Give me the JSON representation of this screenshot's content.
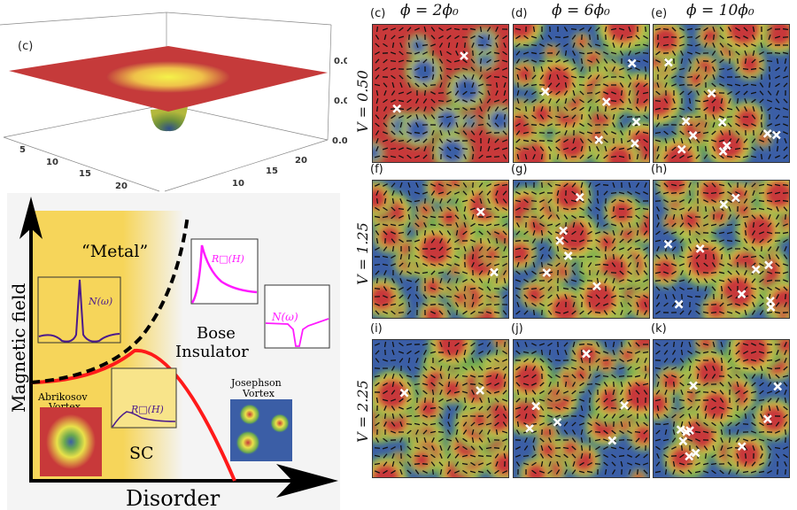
{
  "plot3d": {
    "label": "(c)",
    "z_ticks": [
      "0.0",
      "0.0",
      "0.00"
    ],
    "x_ticks": [
      "5",
      "10",
      "15",
      "20"
    ],
    "y_ticks": [
      "10",
      "15",
      "20"
    ]
  },
  "phase_diagram": {
    "y_axis_label": "Magnetic field",
    "x_axis_label": "Disorder",
    "metal_label": "“Metal”",
    "bose_label_1": "Bose",
    "bose_label_2": "Insulator",
    "sc_label": "SC",
    "abrikosov_1": "Abrikosov",
    "abrikosov_2": "Vortex",
    "josephson_1": "Josephson",
    "josephson_2": "Vortex",
    "inset_dos_metal": "N(ω)",
    "inset_r_bose": "R□(H)",
    "inset_dos_bose": "N(ω)",
    "inset_r_sc": "R□(H)",
    "colors": {
      "sc_region": "#f6d55a",
      "sc_boundary": "#ff1a1a",
      "metal_boundary": "#000000",
      "metal_insets": "#4b1a8c",
      "bose_insets": "#ff1aff"
    }
  },
  "grid": {
    "columns": [
      "ϕ = 2ϕ₀",
      "ϕ = 6ϕ₀",
      "ϕ = 10ϕ₀"
    ],
    "rows": [
      "V = 0.50",
      "V = 1.25",
      "V = 2.25"
    ],
    "panels": [
      {
        "label": "(c)",
        "vortices": 2
      },
      {
        "label": "(d)",
        "vortices": 6
      },
      {
        "label": "(e)",
        "vortices": 10
      },
      {
        "label": "(f)",
        "vortices": 2
      },
      {
        "label": "(g)",
        "vortices": 6
      },
      {
        "label": "(h)",
        "vortices": 10
      },
      {
        "label": "(i)",
        "vortices": 2
      },
      {
        "label": "(j)",
        "vortices": 6
      },
      {
        "label": "(k)",
        "vortices": 10
      }
    ],
    "colors": {
      "high": "#c8393a",
      "mid": "#e9e14a",
      "low_mid": "#6aa84f",
      "low": "#3b5ea6",
      "vortex": "#ffffff"
    }
  }
}
